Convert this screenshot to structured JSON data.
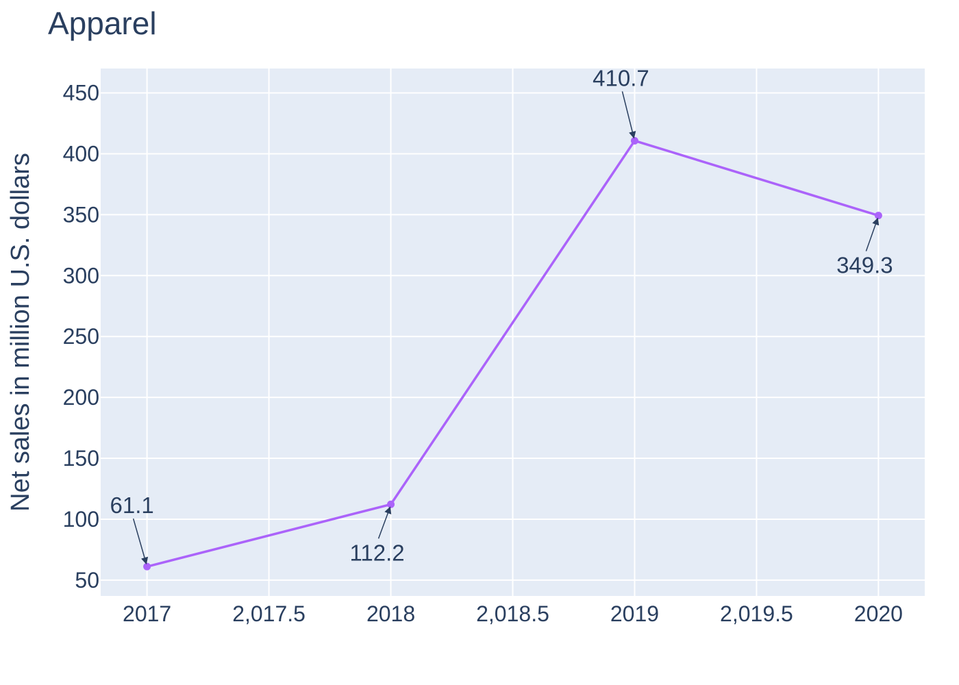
{
  "chart_data": {
    "type": "line",
    "title": "Apparel",
    "xlabel": "",
    "ylabel": "Net sales in million U.S. dollars",
    "x": [
      2017,
      2018,
      2019,
      2020
    ],
    "series": [
      {
        "values": [
          61.1,
          112.2,
          410.7,
          349.3
        ],
        "color": "#ab63fa"
      }
    ],
    "data_labels": [
      "61.1",
      "112.2",
      "410.7",
      "349.3"
    ],
    "xlim": [
      2016.81,
      2020.19
    ],
    "ylim": [
      37,
      470
    ],
    "x_ticks": [
      2017,
      2017.5,
      2018,
      2018.5,
      2019,
      2019.5,
      2020
    ],
    "x_tick_labels": [
      "2017",
      "2,017.5",
      "2018",
      "2,018.5",
      "2019",
      "2,019.5",
      "2020"
    ],
    "y_ticks": [
      50,
      100,
      150,
      200,
      250,
      300,
      350,
      400,
      450
    ],
    "y_tick_labels": [
      "50",
      "100",
      "150",
      "200",
      "250",
      "300",
      "350",
      "400",
      "450"
    ],
    "grid": true,
    "legend": "none",
    "plot_background": "#e5ecf6",
    "grid_color": "#ffffff",
    "text_color": "#2a3f5f"
  }
}
